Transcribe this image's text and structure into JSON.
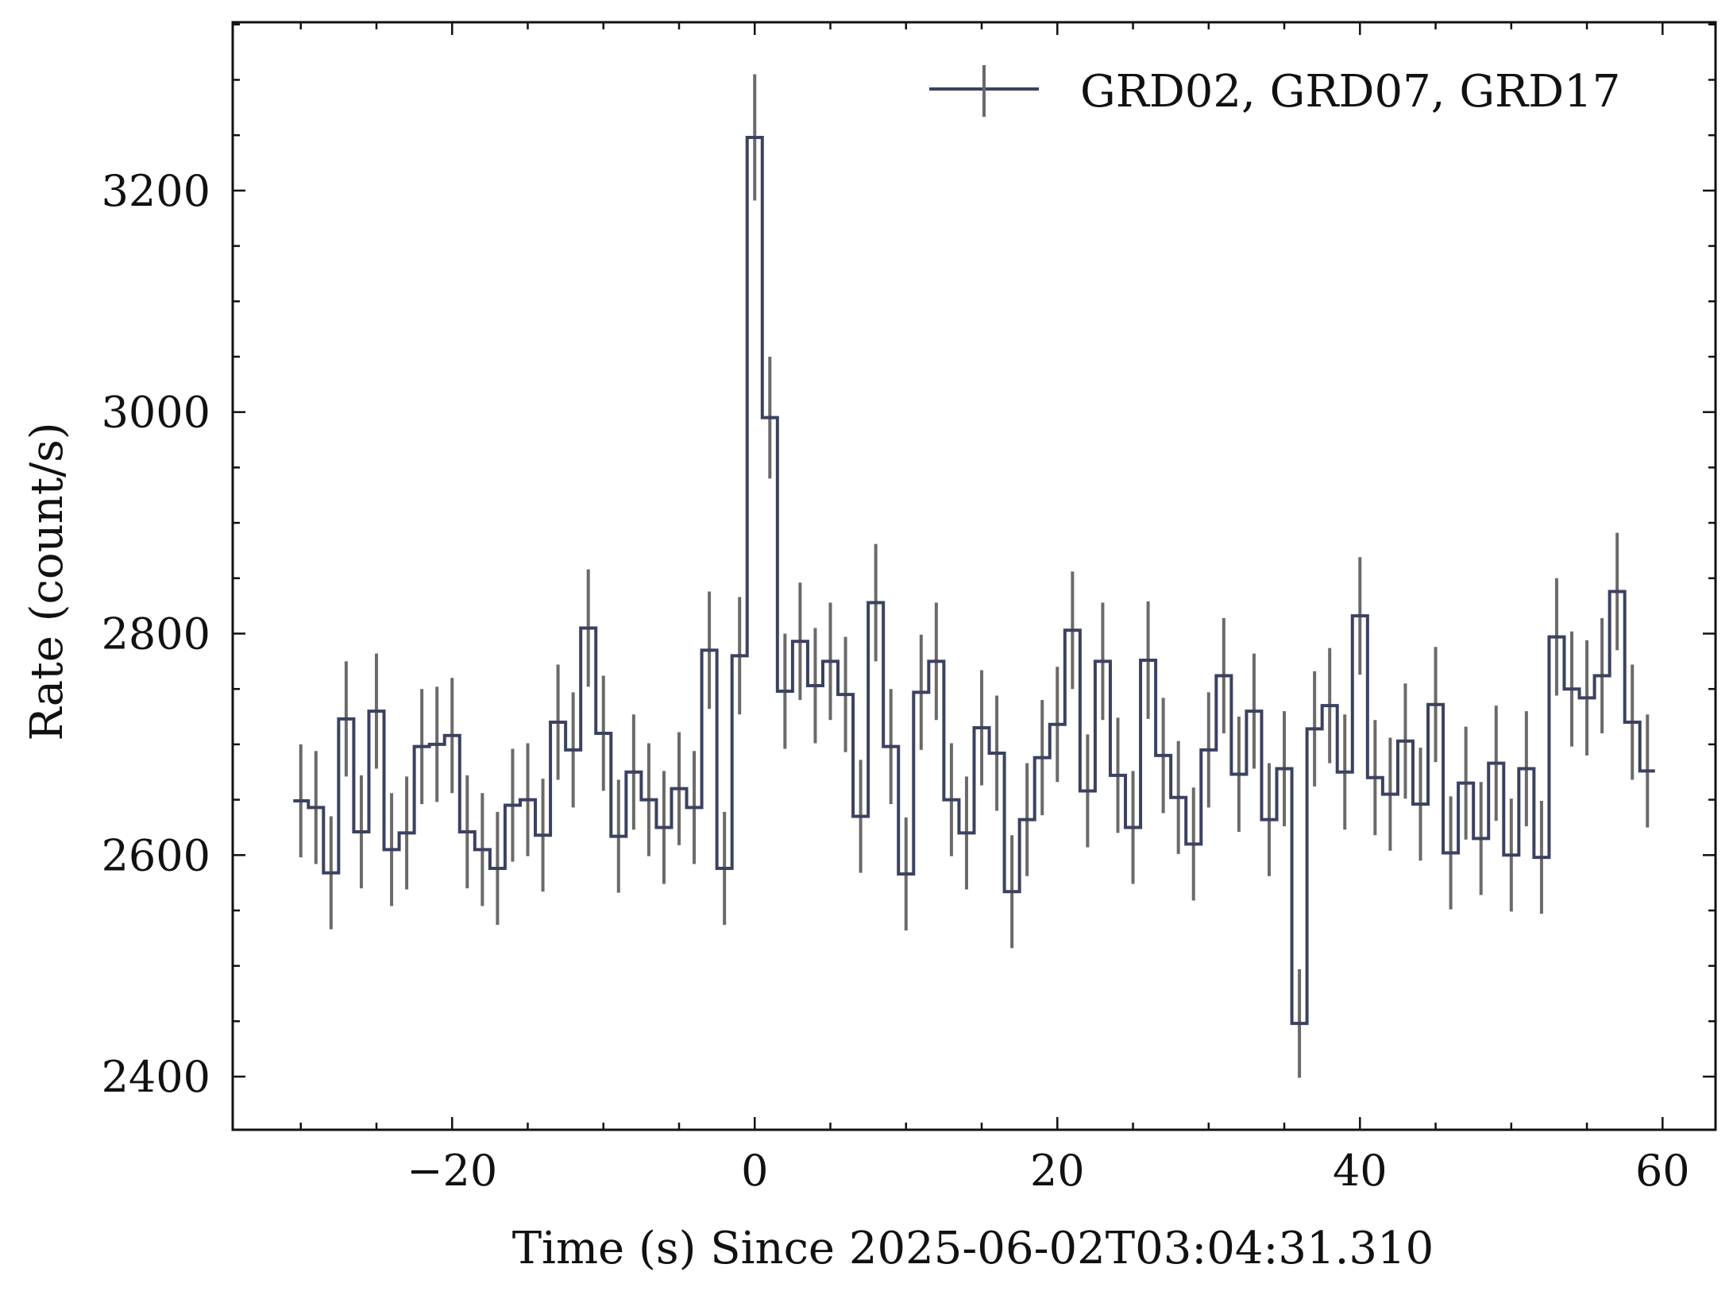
{
  "chart_data": {
    "type": "line",
    "subtype": "step-with-errorbars",
    "xlabel": "Time (s) Since 2025-06-02T03:04:31.310",
    "ylabel": "Rate (count/s)",
    "xlim": [
      -34.5,
      63.5
    ],
    "ylim": [
      2352,
      3352
    ],
    "x_ticks": [
      -20,
      0,
      20,
      40,
      60
    ],
    "x_tick_labels": [
      "−20",
      "0",
      "20",
      "40",
      "60"
    ],
    "y_ticks": [
      2400,
      2600,
      2800,
      3000,
      3200
    ],
    "y_tick_labels": [
      "2400",
      "2600",
      "2800",
      "3000",
      "3200"
    ],
    "x_minor_step": 5,
    "y_minor_step": 50,
    "grid": false,
    "legend_position": "top-right",
    "bin_width": 1,
    "colors": {
      "line": "#3b4260",
      "errorbar": "#6a6a6a",
      "axes": "#111111"
    },
    "series": [
      {
        "name": "GRD02, GRD07, GRD17",
        "x": [
          -30,
          -29,
          -28,
          -27,
          -26,
          -25,
          -24,
          -23,
          -22,
          -21,
          -20,
          -19,
          -18,
          -17,
          -16,
          -15,
          -14,
          -13,
          -12,
          -11,
          -10,
          -9,
          -8,
          -7,
          -6,
          -5,
          -4,
          -3,
          -2,
          -1,
          0,
          1,
          2,
          3,
          4,
          5,
          6,
          7,
          8,
          9,
          10,
          11,
          12,
          13,
          14,
          15,
          16,
          17,
          18,
          19,
          20,
          21,
          22,
          23,
          24,
          25,
          26,
          27,
          28,
          29,
          30,
          31,
          32,
          33,
          34,
          35,
          36,
          37,
          38,
          39,
          40,
          41,
          42,
          43,
          44,
          45,
          46,
          47,
          48,
          49,
          50,
          51,
          52,
          53,
          54,
          55,
          56,
          57,
          58,
          59
        ],
        "y": [
          2649,
          2643,
          2584,
          2723,
          2621,
          2730,
          2605,
          2620,
          2698,
          2700,
          2708,
          2621,
          2605,
          2588,
          2645,
          2650,
          2618,
          2720,
          2695,
          2805,
          2710,
          2617,
          2675,
          2650,
          2625,
          2660,
          2643,
          2785,
          2588,
          2780,
          3248,
          2995,
          2748,
          2793,
          2753,
          2775,
          2745,
          2635,
          2828,
          2698,
          2583,
          2747,
          2775,
          2650,
          2620,
          2715,
          2692,
          2567,
          2632,
          2688,
          2718,
          2803,
          2658,
          2775,
          2672,
          2625,
          2776,
          2690,
          2652,
          2610,
          2695,
          2762,
          2673,
          2730,
          2632,
          2678,
          2448,
          2714,
          2735,
          2675,
          2816,
          2670,
          2655,
          2703,
          2646,
          2736,
          2602,
          2665,
          2615,
          2683,
          2600,
          2678,
          2598,
          2797,
          2750,
          2742,
          2762,
          2838,
          2720,
          2676
        ],
        "yerr": [
          51,
          51,
          51,
          52,
          51,
          52,
          51,
          51,
          52,
          52,
          52,
          51,
          51,
          51,
          51,
          51,
          51,
          52,
          52,
          53,
          52,
          51,
          52,
          51,
          51,
          51,
          51,
          53,
          51,
          53,
          57,
          55,
          52,
          53,
          52,
          53,
          52,
          51,
          53,
          52,
          51,
          52,
          53,
          51,
          51,
          52,
          52,
          51,
          51,
          52,
          52,
          53,
          51,
          53,
          52,
          51,
          53,
          52,
          51,
          51,
          52,
          52,
          52,
          52,
          51,
          52,
          49,
          52,
          52,
          52,
          53,
          52,
          51,
          52,
          51,
          52,
          51,
          51,
          51,
          52,
          51,
          52,
          51,
          53,
          52,
          52,
          52,
          53,
          52,
          51
        ]
      }
    ]
  }
}
